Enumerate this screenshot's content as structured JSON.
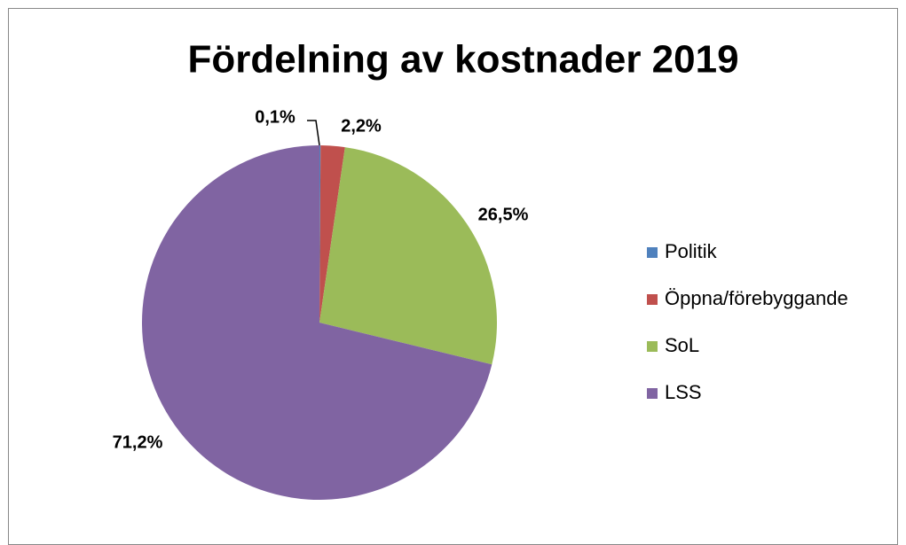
{
  "chart_data": {
    "type": "pie",
    "title": "Fördelning av kostnader 2019",
    "categories": [
      "Politik",
      "Öppna/förebyggande",
      "SoL",
      "LSS"
    ],
    "values": [
      0.1,
      2.2,
      26.5,
      71.2
    ],
    "value_labels": [
      "0,1%",
      "2,2%",
      "26,5%",
      "71,2%"
    ],
    "colors": [
      "#4f81bd",
      "#c0504d",
      "#9bbb59",
      "#8064a2"
    ],
    "legend": "right"
  }
}
